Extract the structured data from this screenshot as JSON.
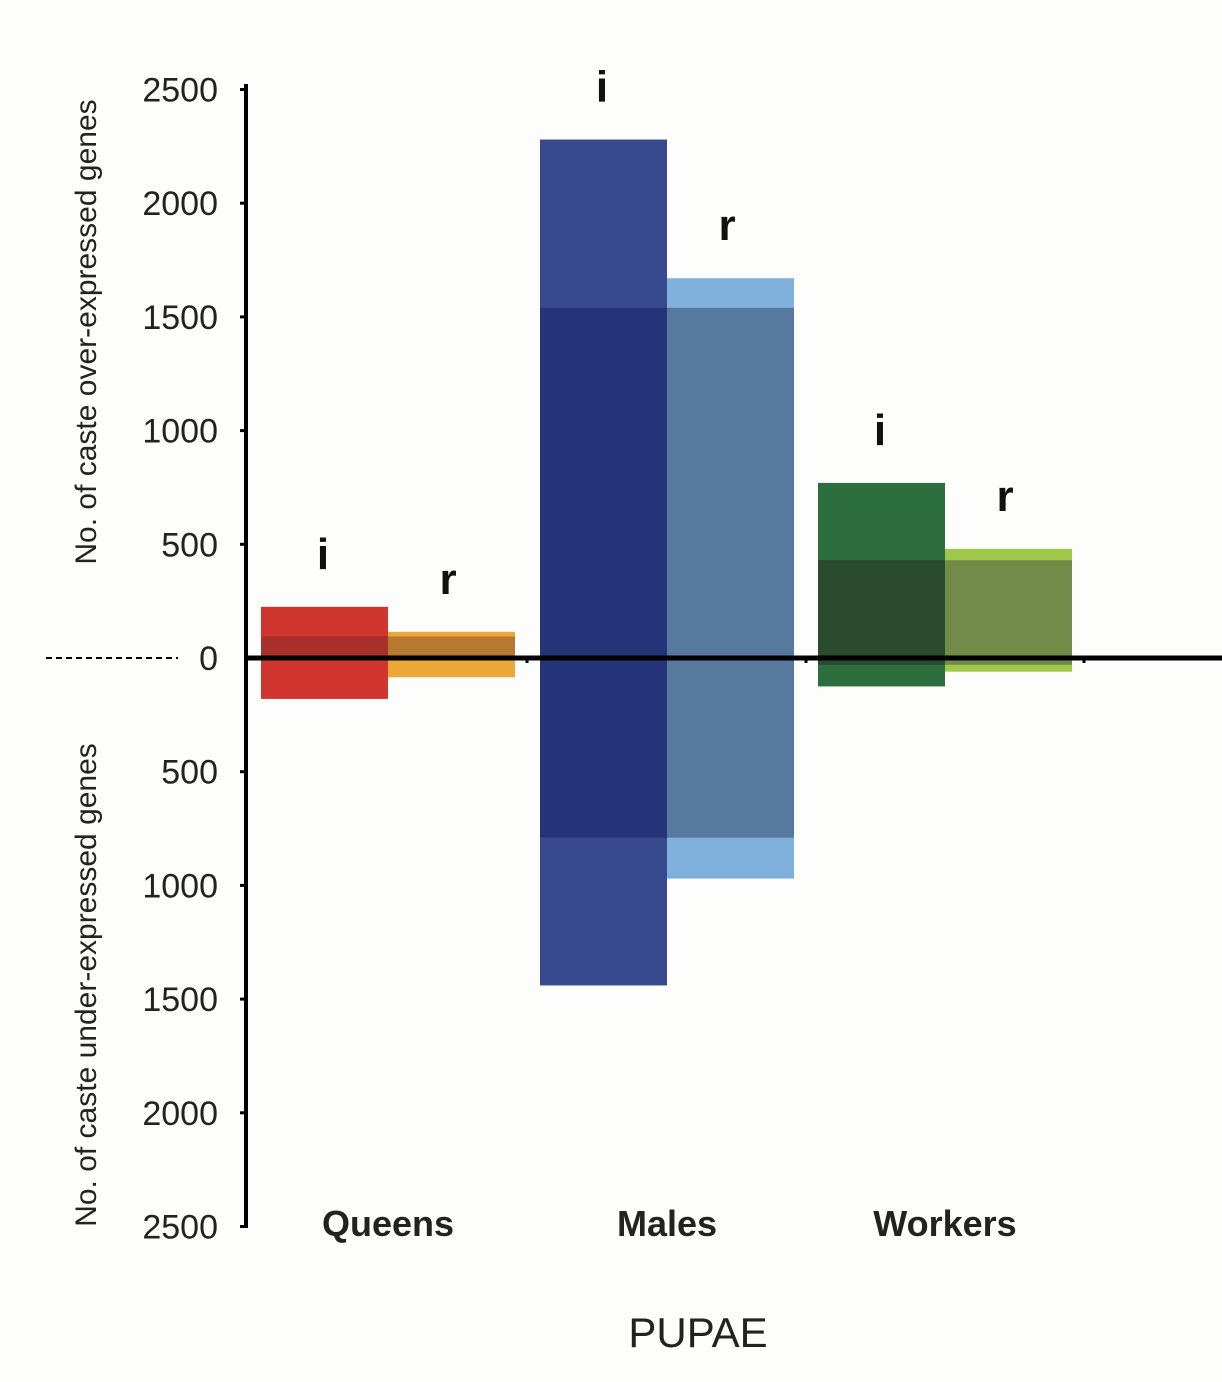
{
  "chart_data": {
    "type": "bar",
    "xlabel": "PUPAE",
    "ylabel_upper": "No. of caste over-expressed genes",
    "ylabel_lower": "No. of caste under-expressed genes",
    "upper_ticks": [
      "2500",
      "2000",
      "1500",
      "1000",
      "500"
    ],
    "zero_tick": "0",
    "lower_ticks": [
      "500",
      "1000",
      "1500",
      "2000",
      "2500"
    ],
    "ylim": [
      -2500,
      2500
    ],
    "grid": false,
    "legend": "none",
    "categories": [
      "Queens",
      "Males",
      "Workers"
    ],
    "groups": [
      {
        "category": "Queens",
        "bars": [
          {
            "tag": "i",
            "over": 225,
            "under": 180,
            "shared_over": 95,
            "shared_under": 5,
            "color_light": "#d0362e",
            "color_dark": "#a8302a"
          },
          {
            "tag": "r",
            "over": 115,
            "under": 85,
            "shared_over": 95,
            "shared_under": 5,
            "color_light": "#eda638",
            "color_dark": "#b57a30"
          }
        ]
      },
      {
        "category": "Males",
        "bars": [
          {
            "tag": "i",
            "over": 2280,
            "under": 1440,
            "shared_over": 1540,
            "shared_under": 790,
            "color_light": "#384a8e",
            "color_dark": "#253479"
          },
          {
            "tag": "r",
            "over": 1670,
            "under": 970,
            "shared_over": 1540,
            "shared_under": 790,
            "color_light": "#7fb0dc",
            "color_dark": "#58799e"
          }
        ]
      },
      {
        "category": "Workers",
        "bars": [
          {
            "tag": "i",
            "over": 770,
            "under": 125,
            "shared_over": 430,
            "shared_under": 30,
            "color_light": "#2d6e3f",
            "color_dark": "#2a4b2e"
          },
          {
            "tag": "r",
            "over": 480,
            "under": 60,
            "shared_over": 430,
            "shared_under": 30,
            "color_light": "#9fc84a",
            "color_dark": "#718c48"
          }
        ]
      }
    ]
  }
}
